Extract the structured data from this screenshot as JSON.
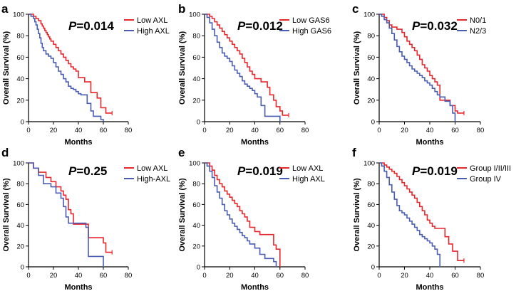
{
  "figure": {
    "x_axis_label": "Months",
    "y_axis_label": "Overall Survival (%)",
    "colors": {
      "red": "#e8272d",
      "blue": "#4a5db3",
      "axis": "#000000"
    }
  },
  "chart_data": [
    {
      "panel": "a",
      "type": "line",
      "step": true,
      "p_prefix": "P",
      "p_value": "=0.014",
      "xlabel": "Months",
      "ylabel": "Overall Survival (%)",
      "xlim": [
        0,
        80
      ],
      "ylim": [
        0,
        100
      ],
      "xticks": [
        "0",
        "20",
        "40",
        "60",
        "80"
      ],
      "yticks": [
        "0",
        "20",
        "40",
        "60",
        "80",
        "100"
      ],
      "series": [
        {
          "name": "Low AXL",
          "color": "#e8272d",
          "x": [
            0,
            4,
            6,
            8,
            10,
            11,
            12,
            13,
            14,
            15,
            16,
            17,
            18,
            20,
            22,
            24,
            26,
            28,
            30,
            32,
            34,
            36,
            38,
            40,
            45,
            48,
            50,
            55,
            58,
            62,
            67
          ],
          "y": [
            100,
            98,
            96,
            94,
            91,
            89,
            87,
            85,
            83,
            81,
            79,
            77,
            75,
            72,
            69,
            66,
            63,
            60,
            57,
            54,
            51,
            49,
            47,
            41,
            37,
            37,
            27,
            22,
            13,
            8,
            8
          ]
        },
        {
          "name": "High AXL",
          "color": "#4a5db3",
          "x": [
            0,
            2,
            4,
            5,
            6,
            7,
            8,
            9,
            10,
            11,
            12,
            14,
            16,
            18,
            20,
            22,
            24,
            26,
            28,
            30,
            32,
            34,
            36,
            38,
            40,
            42,
            47,
            50,
            52,
            58,
            60
          ],
          "y": [
            100,
            98,
            96,
            93,
            90,
            86,
            82,
            78,
            73,
            69,
            66,
            63,
            61,
            59,
            55,
            51,
            47,
            44,
            40,
            37,
            33,
            31,
            30,
            28,
            26,
            25,
            17,
            10,
            5,
            2,
            0
          ]
        }
      ]
    },
    {
      "panel": "b",
      "type": "line",
      "step": true,
      "p_prefix": "P",
      "p_value": "=0.012",
      "xlabel": "Months",
      "ylabel": "Overall Survival (%)",
      "xlim": [
        0,
        80
      ],
      "ylim": [
        0,
        100
      ],
      "xticks": [
        "0",
        "20",
        "40",
        "60",
        "80"
      ],
      "yticks": [
        "0",
        "20",
        "40",
        "60",
        "80",
        "100"
      ],
      "series": [
        {
          "name": "Low GAS6",
          "color": "#e8272d",
          "x": [
            0,
            4,
            6,
            8,
            10,
            12,
            14,
            16,
            18,
            20,
            22,
            24,
            26,
            28,
            30,
            32,
            34,
            36,
            38,
            40,
            45,
            50,
            52,
            55,
            57,
            60,
            62,
            67
          ],
          "y": [
            100,
            98,
            96,
            93,
            90,
            87,
            84,
            81,
            78,
            75,
            72,
            69,
            66,
            63,
            59,
            55,
            51,
            47,
            44,
            40,
            37,
            32,
            25,
            20,
            14,
            10,
            6,
            6
          ]
        },
        {
          "name": "High GAS6",
          "color": "#4a5db3",
          "x": [
            0,
            2,
            4,
            6,
            8,
            10,
            12,
            14,
            16,
            18,
            20,
            22,
            24,
            26,
            28,
            30,
            32,
            34,
            36,
            38,
            40,
            42,
            45,
            48,
            52,
            58,
            60
          ],
          "y": [
            100,
            97,
            92,
            86,
            80,
            74,
            69,
            64,
            61,
            59,
            56,
            52,
            48,
            45,
            42,
            38,
            35,
            33,
            31,
            29,
            26,
            23,
            15,
            5,
            5,
            5,
            0
          ]
        }
      ]
    },
    {
      "panel": "c",
      "type": "line",
      "step": true,
      "p_prefix": "P",
      "p_value": "=0.032",
      "xlabel": "Months",
      "ylabel": "Overall Survival (%)",
      "xlim": [
        0,
        80
      ],
      "ylim": [
        0,
        100
      ],
      "xticks": [
        "0",
        "20",
        "40",
        "60",
        "80"
      ],
      "yticks": [
        "0",
        "20",
        "40",
        "60",
        "80",
        "100"
      ],
      "series": [
        {
          "name": "N0/1",
          "color": "#e8272d",
          "x": [
            0,
            4,
            6,
            8,
            10,
            14,
            18,
            20,
            22,
            24,
            26,
            28,
            30,
            32,
            34,
            36,
            38,
            40,
            42,
            44,
            46,
            48,
            52,
            56,
            60,
            62,
            67
          ],
          "y": [
            100,
            97,
            94,
            90,
            88,
            86,
            83,
            79,
            75,
            72,
            69,
            66,
            62,
            58,
            53,
            50,
            47,
            43,
            40,
            37,
            34,
            20,
            20,
            15,
            10,
            8,
            8
          ]
        },
        {
          "name": "N2/3",
          "color": "#4a5db3",
          "x": [
            0,
            2,
            4,
            6,
            8,
            10,
            12,
            14,
            16,
            18,
            20,
            22,
            24,
            26,
            28,
            30,
            32,
            34,
            36,
            38,
            40,
            42,
            44,
            46,
            48,
            52,
            56,
            58,
            60
          ],
          "y": [
            100,
            98,
            95,
            92,
            87,
            82,
            76,
            70,
            65,
            61,
            58,
            55,
            52,
            49,
            47,
            45,
            43,
            41,
            38,
            36,
            34,
            31,
            28,
            25,
            23,
            19,
            15,
            8,
            0
          ]
        }
      ]
    },
    {
      "panel": "d",
      "type": "line",
      "step": true,
      "p_prefix": "P",
      "p_value": "=0.25",
      "xlabel": "Months",
      "ylabel": "Overall Survival (%)",
      "xlim": [
        0,
        80
      ],
      "ylim": [
        0,
        100
      ],
      "xticks": [
        "0",
        "20",
        "40",
        "60",
        "80"
      ],
      "yticks": [
        "0",
        "20",
        "40",
        "60",
        "80",
        "100"
      ],
      "series": [
        {
          "name": "Low AXL",
          "color": "#e8272d",
          "x": [
            0,
            4,
            8,
            14,
            18,
            22,
            26,
            28,
            30,
            32,
            34,
            36,
            46,
            48,
            60,
            62,
            67
          ],
          "y": [
            100,
            95,
            91,
            86,
            82,
            77,
            73,
            69,
            65,
            55,
            51,
            41,
            41,
            28,
            23,
            14,
            14
          ]
        },
        {
          "name": "High-AXL",
          "color": "#4a5db3",
          "x": [
            0,
            4,
            8,
            12,
            18,
            22,
            26,
            28,
            30,
            32,
            34,
            44,
            46,
            48,
            58,
            60
          ],
          "y": [
            100,
            95,
            88,
            80,
            77,
            71,
            66,
            58,
            48,
            42,
            42,
            42,
            38,
            10,
            10,
            0
          ]
        }
      ]
    },
    {
      "panel": "e",
      "type": "line",
      "step": true,
      "p_prefix": "P",
      "p_value": "=0.019",
      "xlabel": "Months",
      "ylabel": "Overall Survival (%)",
      "xlim": [
        0,
        80
      ],
      "ylim": [
        0,
        100
      ],
      "xticks": [
        "0",
        "20",
        "40",
        "60",
        "80"
      ],
      "yticks": [
        "0",
        "20",
        "40",
        "60",
        "80",
        "100"
      ],
      "series": [
        {
          "name": "Low AXL",
          "color": "#e8272d",
          "x": [
            0,
            4,
            6,
            8,
            10,
            12,
            14,
            16,
            18,
            20,
            22,
            24,
            26,
            28,
            30,
            32,
            34,
            36,
            40,
            44,
            55,
            57,
            60
          ],
          "y": [
            100,
            97,
            93,
            88,
            84,
            80,
            77,
            73,
            70,
            67,
            64,
            61,
            58,
            54,
            51,
            48,
            44,
            38,
            34,
            31,
            21,
            17,
            0
          ]
        },
        {
          "name": "High AXL",
          "color": "#4a5db3",
          "x": [
            0,
            2,
            4,
            6,
            8,
            10,
            12,
            14,
            16,
            18,
            20,
            22,
            24,
            26,
            28,
            30,
            32,
            34,
            36,
            40,
            44,
            48,
            55,
            57
          ],
          "y": [
            100,
            97,
            92,
            86,
            78,
            72,
            66,
            60,
            54,
            50,
            46,
            42,
            39,
            36,
            33,
            30,
            28,
            25,
            22,
            18,
            12,
            8,
            5,
            0
          ]
        }
      ]
    },
    {
      "panel": "f",
      "type": "line",
      "step": true,
      "p_prefix": "P",
      "p_value": "=0.019",
      "xlabel": "Months",
      "ylabel": "Overall Survival (%)",
      "xlim": [
        0,
        80
      ],
      "ylim": [
        0,
        100
      ],
      "xticks": [
        "0",
        "20",
        "40",
        "60",
        "80"
      ],
      "yticks": [
        "0",
        "20",
        "40",
        "60",
        "80",
        "100"
      ],
      "series": [
        {
          "name": "Group I/II/III",
          "color": "#e8272d",
          "x": [
            0,
            4,
            6,
            8,
            10,
            12,
            14,
            16,
            18,
            20,
            22,
            24,
            26,
            28,
            30,
            32,
            34,
            36,
            38,
            40,
            42,
            44,
            50,
            52,
            55,
            58,
            62,
            67
          ],
          "y": [
            100,
            98,
            96,
            94,
            92,
            90,
            87,
            84,
            81,
            78,
            75,
            72,
            69,
            66,
            62,
            58,
            54,
            50,
            45,
            42,
            39,
            37,
            37,
            29,
            22,
            15,
            6,
            6
          ]
        },
        {
          "name": "Group IV",
          "color": "#4a5db3",
          "x": [
            0,
            2,
            4,
            6,
            8,
            10,
            12,
            14,
            16,
            18,
            20,
            22,
            24,
            26,
            28,
            30,
            32,
            34,
            36,
            38,
            40,
            42,
            44,
            46,
            48
          ],
          "y": [
            100,
            97,
            92,
            86,
            79,
            72,
            65,
            59,
            54,
            52,
            50,
            47,
            44,
            41,
            38,
            35,
            31,
            29,
            27,
            25,
            23,
            20,
            17,
            12,
            0
          ]
        }
      ]
    }
  ]
}
